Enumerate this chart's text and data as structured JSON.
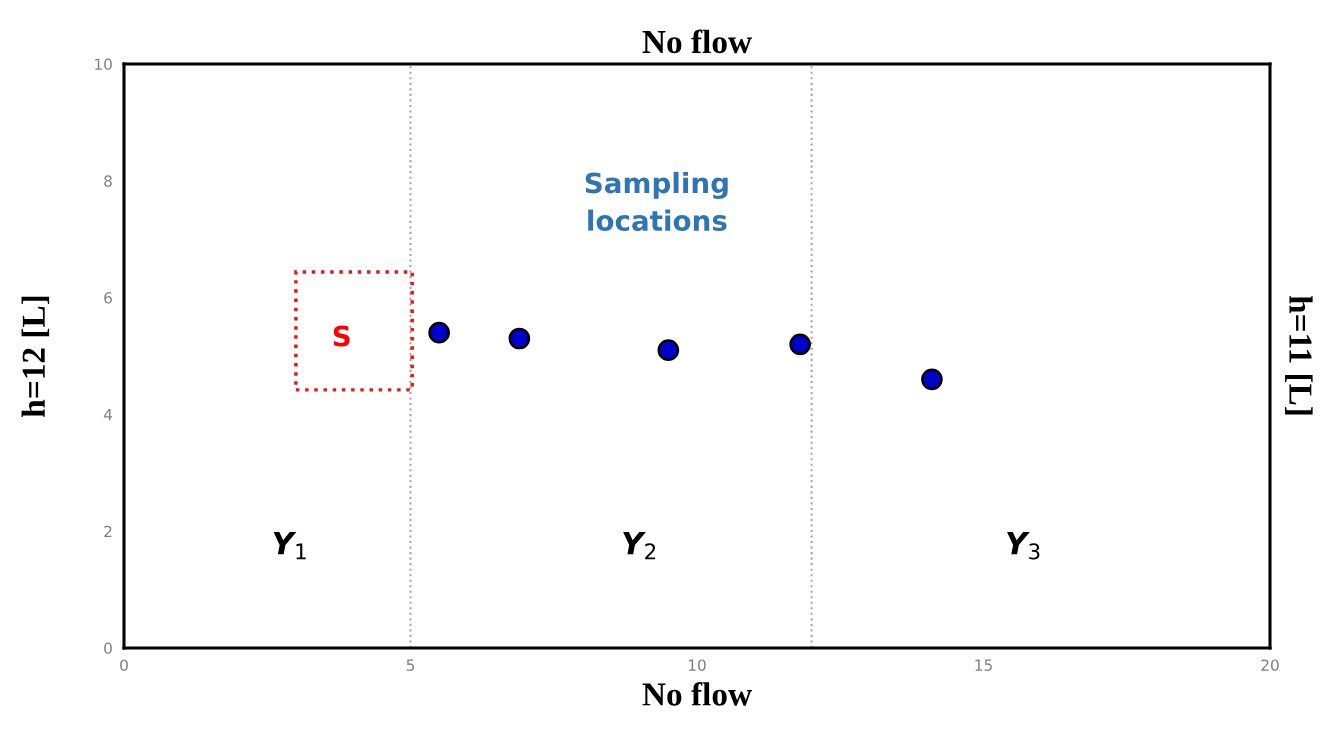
{
  "chart_data": {
    "type": "scatter",
    "title": "No flow",
    "xlabel": "No flow",
    "ylabel": "h=12 [L]",
    "y2label": "h=11 [L]",
    "x": [
      5.5,
      6.9,
      9.5,
      11.8,
      14.1
    ],
    "series": [
      {
        "color": "#0000cc",
        "values": [
          5.4,
          5.3,
          5.1,
          5.2,
          4.6
        ]
      }
    ],
    "marker": "circle",
    "grid": false,
    "xlim": [
      0,
      20
    ],
    "ylim": [
      0,
      10
    ],
    "xticks": [
      0,
      5,
      10,
      15,
      20
    ],
    "yticks": [
      0,
      2,
      4,
      6,
      8,
      10
    ],
    "ref_lines": [
      {
        "axis": "x",
        "value": 5,
        "color": "#a6a6a6",
        "line_style": "dotted"
      },
      {
        "axis": "x",
        "value": 12,
        "color": "#a6a6a6",
        "line_style": "dotted"
      }
    ],
    "annotations": [
      "Sampling\nlocations",
      "S",
      "Y$_{1}$",
      "Y$_{2}$",
      "Y$_{3}$"
    ]
  }
}
